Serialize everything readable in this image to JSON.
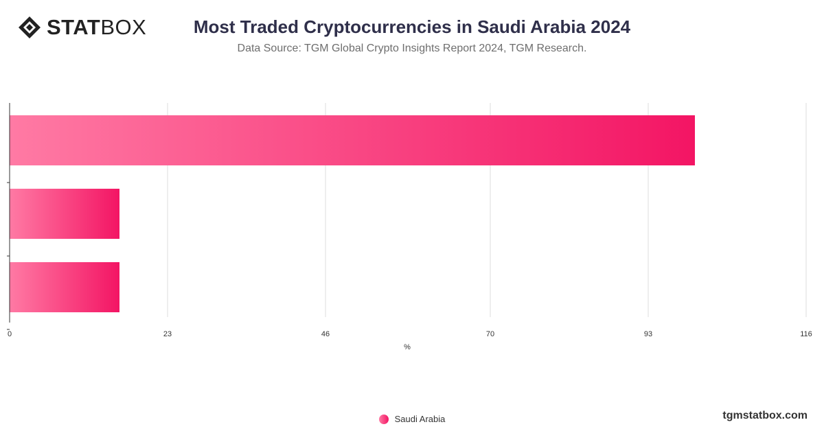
{
  "brand": {
    "logo_bold": "STAT",
    "logo_light": "BOX",
    "site": "tgmstatbox.com"
  },
  "title": "Most Traded Cryptocurrencies in Saudi Arabia 2024",
  "subtitle": "Data Source: TGM Global Crypto Insights Report 2024, TGM Research.",
  "colors": {
    "bar_start": "#ff7aa4",
    "bar_end": "#f31564",
    "grid": "#dddddd",
    "axis": "#333333",
    "text": "#333333"
  },
  "chart_data": {
    "type": "bar",
    "orientation": "horizontal",
    "categories": [
      "",
      "",
      ""
    ],
    "series": [
      {
        "name": "Saudi Arabia",
        "values": [
          99.8,
          16.0,
          16.0
        ]
      }
    ],
    "xlabel": "%",
    "ylabel": "",
    "xlim": [
      0,
      116
    ],
    "xticks": [
      0,
      23,
      46,
      70,
      93,
      116
    ],
    "grid": true,
    "legend": "bottom-center"
  }
}
